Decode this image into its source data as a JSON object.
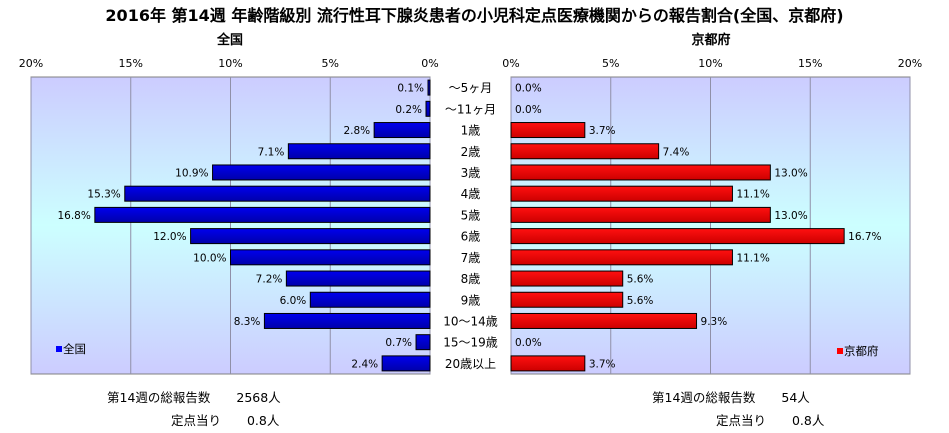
{
  "title": "2016年 第14週 年齢階級別 流行性耳下腺炎患者の小児科定点医療機関からの報告割合(全国、京都府)",
  "chart_data": {
    "type": "bar",
    "categories": [
      "～5ヶ月",
      "～11ヶ月",
      "1歳",
      "2歳",
      "3歳",
      "4歳",
      "5歳",
      "6歳",
      "7歳",
      "8歳",
      "9歳",
      "10～14歳",
      "15～19歳",
      "20歳以上"
    ],
    "x_ticks": [
      "0%",
      "5%",
      "10%",
      "15%",
      "20%"
    ],
    "xlim": [
      0,
      20
    ],
    "grid": true,
    "series": [
      {
        "name": "全国",
        "panel_title": "全国",
        "color": "#0000ff",
        "side": "left",
        "values": [
          0.1,
          0.2,
          2.8,
          7.1,
          10.9,
          15.3,
          16.8,
          12.0,
          10.0,
          7.2,
          6.0,
          8.3,
          0.7,
          2.4
        ],
        "labels": [
          "0.1%",
          "0.2%",
          "2.8%",
          "7.1%",
          "10.9%",
          "15.3%",
          "16.8%",
          "12.0%",
          "10.0%",
          "7.2%",
          "6.0%",
          "8.3%",
          "0.7%",
          "2.4%"
        ],
        "legend_position": "bottom-left"
      },
      {
        "name": "京都府",
        "panel_title": "京都府",
        "color": "#ff0000",
        "side": "right",
        "values": [
          0.0,
          0.0,
          3.7,
          7.4,
          13.0,
          11.1,
          13.0,
          16.7,
          11.1,
          5.6,
          5.6,
          9.3,
          0.0,
          3.7
        ],
        "labels": [
          "0.0%",
          "0.0%",
          "3.7%",
          "7.4%",
          "13.0%",
          "11.1%",
          "13.0%",
          "16.7%",
          "11.1%",
          "5.6%",
          "5.6%",
          "9.3%",
          "0.0%",
          "3.7%"
        ],
        "legend_position": "bottom-right"
      }
    ]
  },
  "footer": {
    "left": {
      "total_label": "第14週の総報告数",
      "total_value": "2568人",
      "per_label": "定点当り",
      "per_value": "0.8人"
    },
    "right": {
      "total_label": "第14週の総報告数",
      "total_value": "54人",
      "per_label": "定点当り",
      "per_value": "0.8人"
    }
  }
}
